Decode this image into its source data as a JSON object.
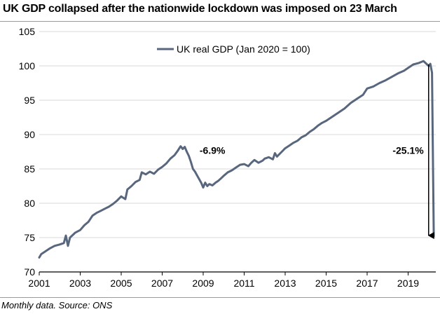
{
  "title": "UK GDP collapsed after the nationwide lockdown was imposed on 23 March",
  "footnote": "Monthly data. Source: ONS",
  "colors": {
    "series": "#58677d",
    "grid": "#d9d9d9",
    "axis": "#000000",
    "arrow": "#000000"
  },
  "chart_data": {
    "type": "line",
    "title": "UK GDP collapsed after the nationwide lockdown was imposed on 23 March",
    "xlabel": "",
    "ylabel": "",
    "xlim": [
      2001.0,
      2020.35
    ],
    "ylim": [
      70,
      105
    ],
    "grid": "horizontal",
    "legend_position": "top-center",
    "x_ticks": [
      2001,
      2003,
      2005,
      2007,
      2009,
      2011,
      2013,
      2015,
      2017,
      2019
    ],
    "x_tick_labels": [
      "2001",
      "2003",
      "2005",
      "2007",
      "2009",
      "2011",
      "2013",
      "2015",
      "2017",
      "2019"
    ],
    "y_ticks": [
      70,
      75,
      80,
      85,
      90,
      95,
      100,
      105
    ],
    "y_tick_labels": [
      "70",
      "75",
      "80",
      "85",
      "90",
      "95",
      "100",
      "105"
    ],
    "series": [
      {
        "name": "UK real GDP (Jan 2020 = 100)",
        "x": [
          2001.0,
          2001.1,
          2001.25,
          2001.5,
          2001.75,
          2002.0,
          2002.2,
          2002.3,
          2002.4,
          2002.5,
          2002.75,
          2003.0,
          2003.2,
          2003.4,
          2003.6,
          2003.8,
          2004.0,
          2004.2,
          2004.4,
          2004.6,
          2004.8,
          2005.0,
          2005.2,
          2005.3,
          2005.5,
          2005.7,
          2005.9,
          2006.0,
          2006.2,
          2006.4,
          2006.6,
          2006.8,
          2007.0,
          2007.2,
          2007.4,
          2007.6,
          2007.75,
          2007.9,
          2008.0,
          2008.1,
          2008.2,
          2008.3,
          2008.4,
          2008.5,
          2008.6,
          2008.75,
          2008.9,
          2009.0,
          2009.1,
          2009.2,
          2009.3,
          2009.45,
          2009.6,
          2009.75,
          2009.9,
          2010.0,
          2010.2,
          2010.4,
          2010.6,
          2010.8,
          2011.0,
          2011.2,
          2011.35,
          2011.5,
          2011.7,
          2011.9,
          2012.0,
          2012.2,
          2012.4,
          2012.5,
          2012.6,
          2012.8,
          2013.0,
          2013.2,
          2013.4,
          2013.6,
          2013.8,
          2014.0,
          2014.2,
          2014.4,
          2014.6,
          2014.8,
          2015.0,
          2015.3,
          2015.6,
          2015.9,
          2016.2,
          2016.5,
          2016.8,
          2017.0,
          2017.3,
          2017.6,
          2017.9,
          2018.2,
          2018.5,
          2018.8,
          2019.0,
          2019.25,
          2019.5,
          2019.75,
          2020.0,
          2020.083,
          2020.167,
          2020.25
        ],
        "y": [
          72.1,
          72.6,
          72.9,
          73.4,
          73.8,
          74.0,
          74.2,
          75.3,
          73.8,
          75.0,
          75.7,
          76.1,
          76.8,
          77.3,
          78.2,
          78.6,
          78.9,
          79.2,
          79.5,
          79.9,
          80.4,
          81.0,
          80.6,
          82.0,
          82.5,
          83.1,
          83.4,
          84.5,
          84.2,
          84.6,
          84.3,
          84.9,
          85.3,
          85.8,
          86.5,
          87.0,
          87.6,
          88.3,
          87.9,
          88.2,
          87.5,
          86.9,
          86.0,
          85.0,
          84.6,
          83.8,
          83.0,
          82.3,
          83.0,
          82.5,
          82.8,
          82.6,
          83.0,
          83.3,
          83.7,
          84.0,
          84.5,
          84.8,
          85.2,
          85.6,
          85.7,
          85.4,
          85.9,
          86.3,
          85.9,
          86.2,
          86.5,
          86.7,
          86.4,
          87.3,
          86.8,
          87.4,
          88.0,
          88.4,
          88.8,
          89.1,
          89.6,
          89.9,
          90.4,
          90.8,
          91.3,
          91.7,
          92.0,
          92.6,
          93.2,
          93.8,
          94.6,
          95.2,
          95.8,
          96.7,
          97.0,
          97.5,
          97.9,
          98.4,
          98.9,
          99.3,
          99.7,
          100.2,
          100.4,
          100.7,
          100.0,
          100.3,
          99.0,
          75.2
        ]
      }
    ],
    "annotations": [
      {
        "text": "-6.9%",
        "x": 2009.45,
        "y": 87.2
      },
      {
        "text": "-25.1%",
        "x": 2019.0,
        "y": 87.2
      }
    ],
    "arrow": {
      "x": 2020.0,
      "from_y": 100.2,
      "to_y": 75.3
    }
  }
}
